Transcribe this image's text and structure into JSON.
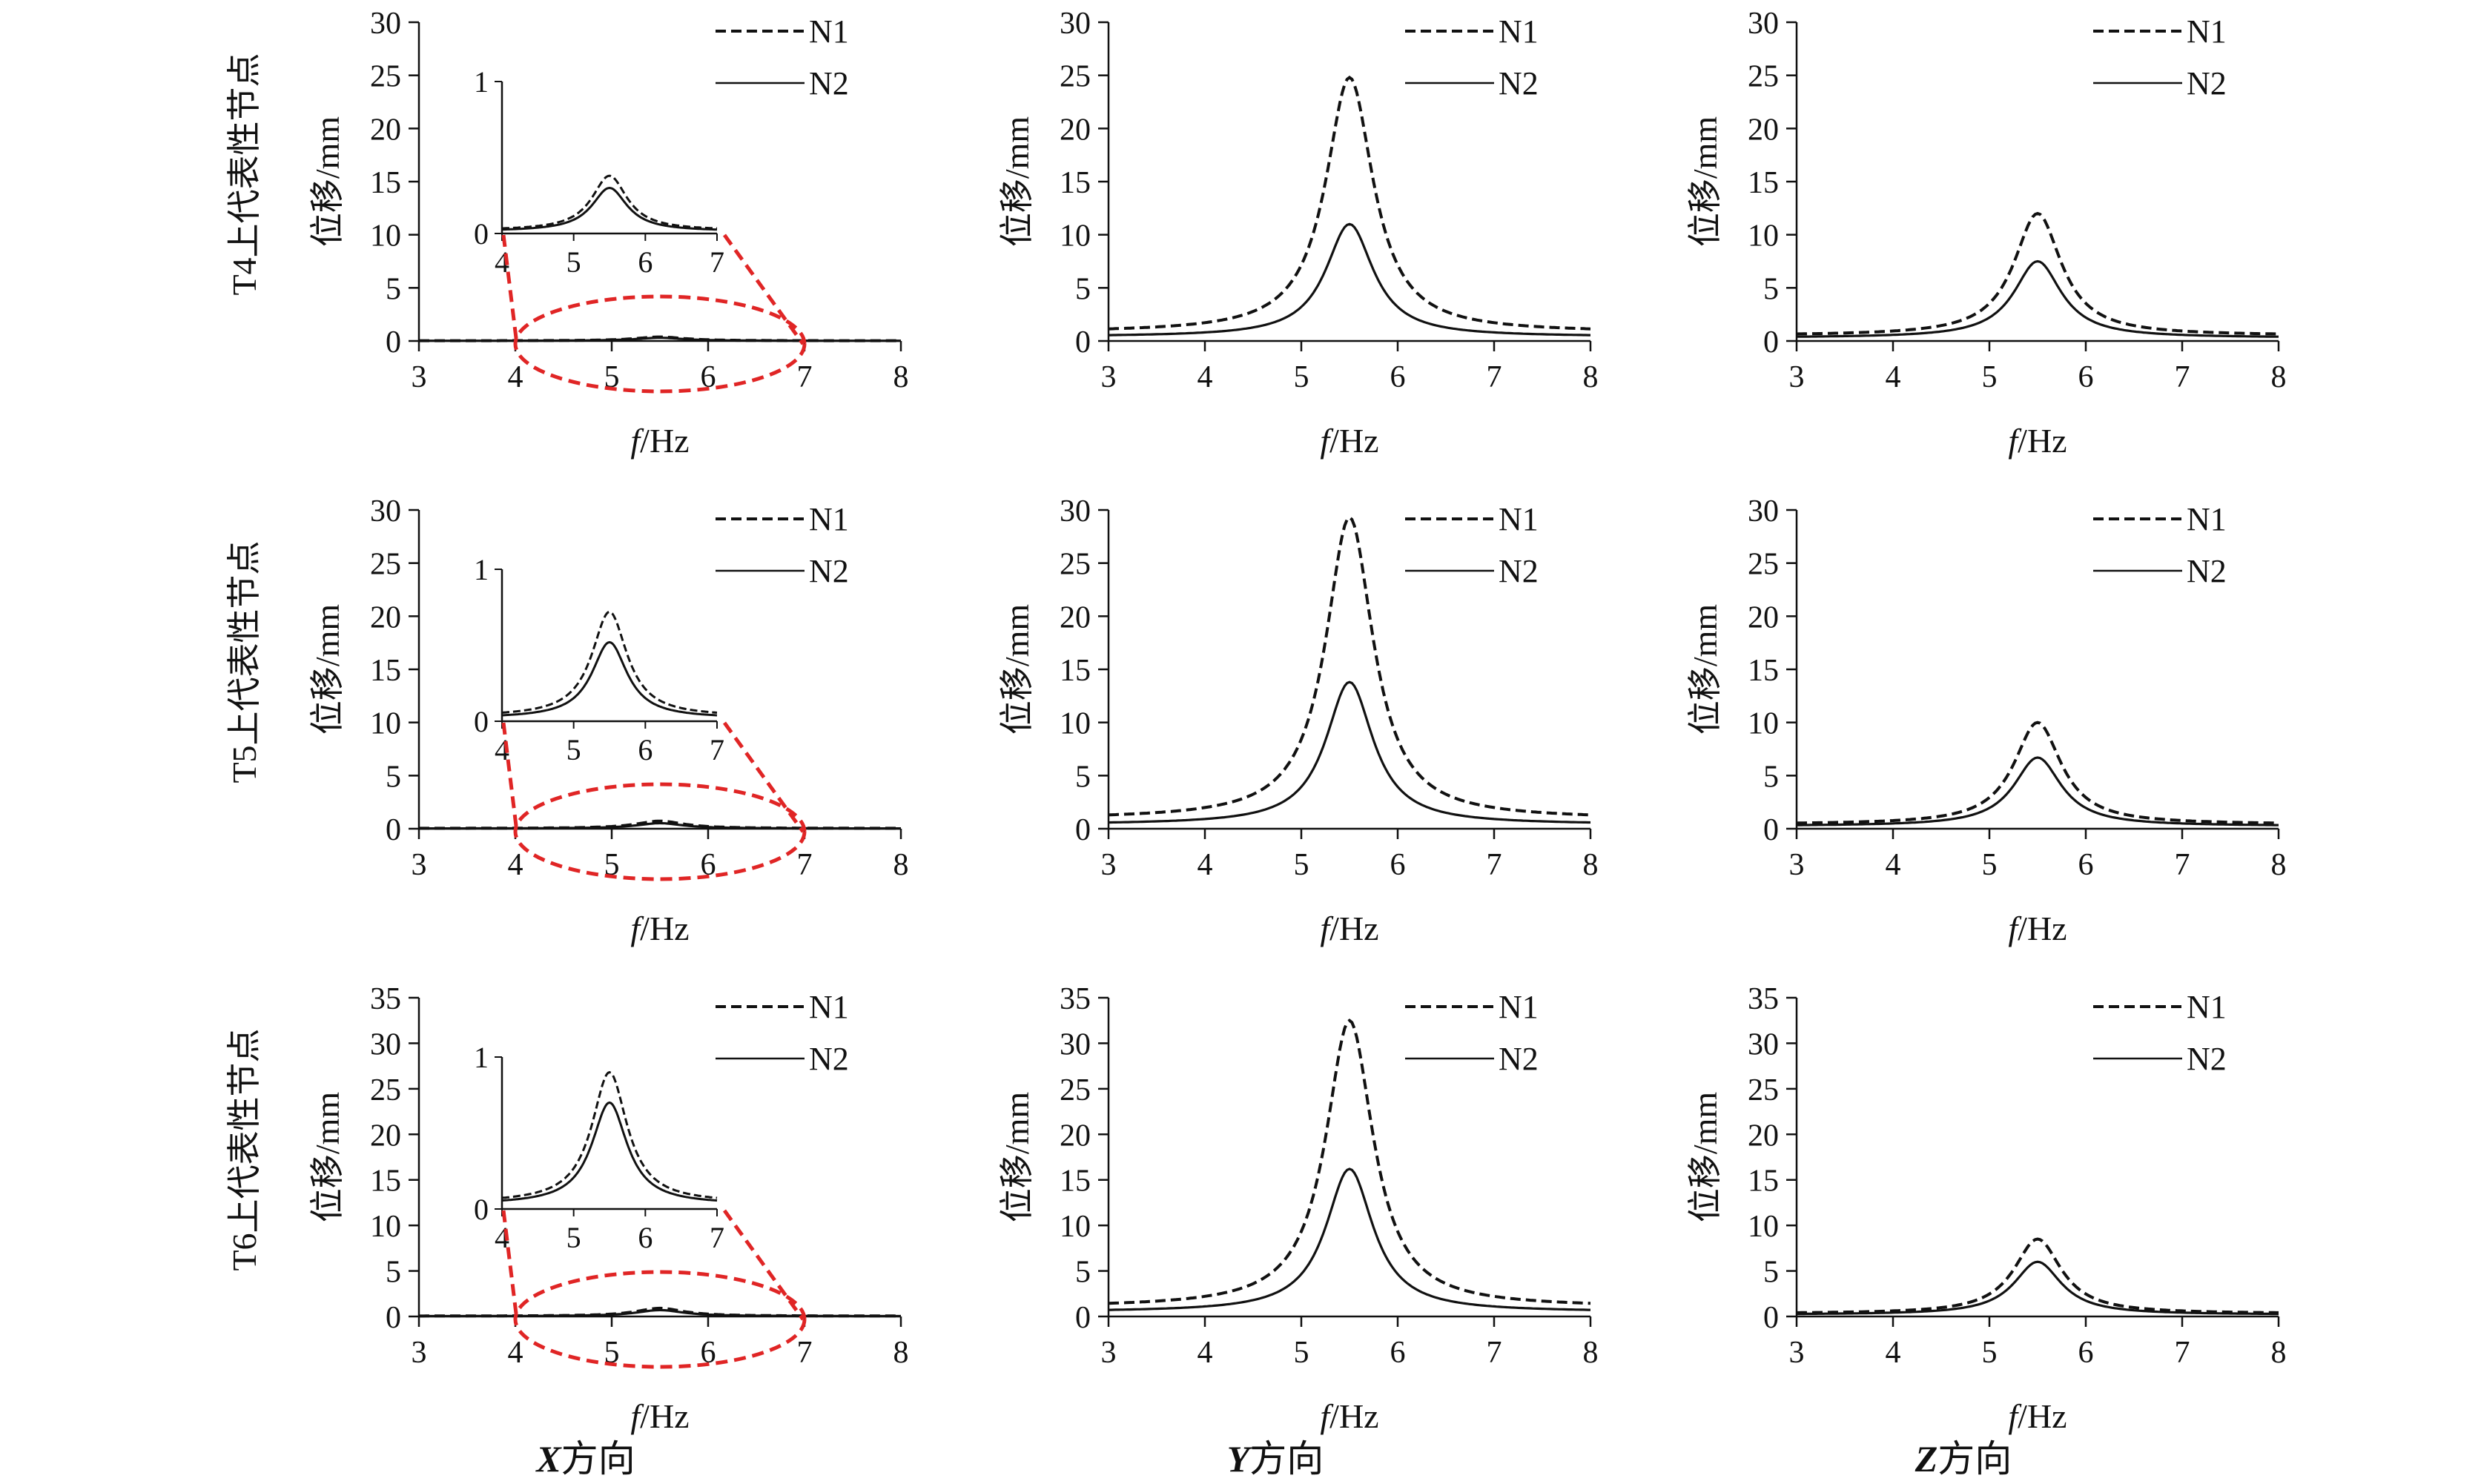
{
  "figure": {
    "row_labels": [
      "T4上代表性节点",
      "T5上代表性节点",
      "T6上代表性节点"
    ],
    "column_captions": [
      {
        "axis": "X",
        "suffix": "方向"
      },
      {
        "axis": "Y",
        "suffix": "方向"
      },
      {
        "axis": "Z",
        "suffix": "方向"
      }
    ],
    "colors": {
      "line": "#111111",
      "callout": "#e02525"
    }
  },
  "chart_data": [
    {
      "type": "line",
      "row": 0,
      "col": 0,
      "ylabel": "位移/mm",
      "xlabel_italic": "f",
      "xlabel_rest": "/Hz",
      "xlim": [
        3,
        8
      ],
      "xticks": [
        3,
        4,
        5,
        6,
        7,
        8
      ],
      "ylim": [
        0,
        30
      ],
      "yticks": [
        0,
        5,
        10,
        15,
        20,
        25,
        30
      ],
      "legend": [
        "N1",
        "N2"
      ],
      "series": [
        {
          "name": "N1",
          "style": "dashed",
          "peak": 0.38,
          "base": 0.02
        },
        {
          "name": "N2",
          "style": "solid",
          "peak": 0.3,
          "base": 0.015
        }
      ],
      "inset": {
        "xlim": [
          4,
          7
        ],
        "xticks": [
          4,
          5,
          6,
          7
        ],
        "ylim": [
          0,
          1
        ],
        "yticks": [
          0,
          1
        ],
        "zoom_x": [
          4,
          7
        ]
      }
    },
    {
      "type": "line",
      "row": 0,
      "col": 1,
      "ylabel": "位移/mm",
      "xlabel_italic": "f",
      "xlabel_rest": "/Hz",
      "xlim": [
        3,
        8
      ],
      "xticks": [
        3,
        4,
        5,
        6,
        7,
        8
      ],
      "ylim": [
        0,
        30
      ],
      "yticks": [
        0,
        5,
        10,
        15,
        20,
        25,
        30
      ],
      "legend": [
        "N1",
        "N2"
      ],
      "series": [
        {
          "name": "N1",
          "style": "dashed",
          "peak": 24.8,
          "base": 0.8
        },
        {
          "name": "N2",
          "style": "solid",
          "peak": 11,
          "base": 0.4
        }
      ]
    },
    {
      "type": "line",
      "row": 0,
      "col": 2,
      "ylabel": "位移/mm",
      "xlabel_italic": "f",
      "xlabel_rest": "/Hz",
      "xlim": [
        3,
        8
      ],
      "xticks": [
        3,
        4,
        5,
        6,
        7,
        8
      ],
      "ylim": [
        0,
        30
      ],
      "yticks": [
        0,
        5,
        10,
        15,
        20,
        25,
        30
      ],
      "legend": [
        "N1",
        "N2"
      ],
      "series": [
        {
          "name": "N1",
          "style": "dashed",
          "peak": 12,
          "base": 0.5
        },
        {
          "name": "N2",
          "style": "solid",
          "peak": 7.5,
          "base": 0.3
        }
      ]
    },
    {
      "type": "line",
      "row": 1,
      "col": 0,
      "ylabel": "位移/mm",
      "xlabel_italic": "f",
      "xlabel_rest": "/Hz",
      "xlim": [
        3,
        8
      ],
      "xticks": [
        3,
        4,
        5,
        6,
        7,
        8
      ],
      "ylim": [
        0,
        30
      ],
      "yticks": [
        0,
        5,
        10,
        15,
        20,
        25,
        30
      ],
      "legend": [
        "N1",
        "N2"
      ],
      "series": [
        {
          "name": "N1",
          "style": "dashed",
          "peak": 0.72,
          "base": 0.03
        },
        {
          "name": "N2",
          "style": "solid",
          "peak": 0.52,
          "base": 0.02
        }
      ],
      "inset": {
        "xlim": [
          4,
          7
        ],
        "xticks": [
          4,
          5,
          6,
          7
        ],
        "ylim": [
          0,
          1
        ],
        "yticks": [
          0,
          1
        ],
        "zoom_x": [
          4,
          7
        ]
      }
    },
    {
      "type": "line",
      "row": 1,
      "col": 1,
      "ylabel": "位移/mm",
      "xlabel_italic": "f",
      "xlabel_rest": "/Hz",
      "xlim": [
        3,
        8
      ],
      "xticks": [
        3,
        4,
        5,
        6,
        7,
        8
      ],
      "ylim": [
        0,
        30
      ],
      "yticks": [
        0,
        5,
        10,
        15,
        20,
        25,
        30
      ],
      "legend": [
        "N1",
        "N2"
      ],
      "series": [
        {
          "name": "N1",
          "style": "dashed",
          "peak": 29.3,
          "base": 0.9
        },
        {
          "name": "N2",
          "style": "solid",
          "peak": 13.8,
          "base": 0.4
        }
      ]
    },
    {
      "type": "line",
      "row": 1,
      "col": 2,
      "ylabel": "位移/mm",
      "xlabel_italic": "f",
      "xlabel_rest": "/Hz",
      "xlim": [
        3,
        8
      ],
      "xticks": [
        3,
        4,
        5,
        6,
        7,
        8
      ],
      "ylim": [
        0,
        30
      ],
      "yticks": [
        0,
        5,
        10,
        15,
        20,
        25,
        30
      ],
      "legend": [
        "N1",
        "N2"
      ],
      "series": [
        {
          "name": "N1",
          "style": "dashed",
          "peak": 10,
          "base": 0.4
        },
        {
          "name": "N2",
          "style": "solid",
          "peak": 6.7,
          "base": 0.25
        }
      ]
    },
    {
      "type": "line",
      "row": 2,
      "col": 0,
      "ylabel": "位移/mm",
      "xlabel_italic": "f",
      "xlabel_rest": "/Hz",
      "xlim": [
        3,
        8
      ],
      "xticks": [
        3,
        4,
        5,
        6,
        7,
        8
      ],
      "ylim": [
        0,
        35
      ],
      "yticks": [
        0,
        5,
        10,
        15,
        20,
        25,
        30,
        35
      ],
      "legend": [
        "N1",
        "N2"
      ],
      "series": [
        {
          "name": "N1",
          "style": "dashed",
          "peak": 0.9,
          "base": 0.04
        },
        {
          "name": "N2",
          "style": "solid",
          "peak": 0.7,
          "base": 0.03
        }
      ],
      "inset": {
        "xlim": [
          4,
          7
        ],
        "xticks": [
          4,
          5,
          6,
          7
        ],
        "ylim": [
          0,
          1
        ],
        "yticks": [
          0,
          1
        ],
        "zoom_x": [
          4,
          7
        ]
      }
    },
    {
      "type": "line",
      "row": 2,
      "col": 1,
      "ylabel": "位移/mm",
      "xlabel_italic": "f",
      "xlabel_rest": "/Hz",
      "xlim": [
        3,
        8
      ],
      "xticks": [
        3,
        4,
        5,
        6,
        7,
        8
      ],
      "ylim": [
        0,
        35
      ],
      "yticks": [
        0,
        5,
        10,
        15,
        20,
        25,
        30,
        35
      ],
      "legend": [
        "N1",
        "N2"
      ],
      "series": [
        {
          "name": "N1",
          "style": "dashed",
          "peak": 32.5,
          "base": 1.0
        },
        {
          "name": "N2",
          "style": "solid",
          "peak": 16.2,
          "base": 0.5
        }
      ]
    },
    {
      "type": "line",
      "row": 2,
      "col": 2,
      "ylabel": "位移/mm",
      "xlabel_italic": "f",
      "xlabel_rest": "/Hz",
      "xlim": [
        3,
        8
      ],
      "xticks": [
        3,
        4,
        5,
        6,
        7,
        8
      ],
      "ylim": [
        0,
        35
      ],
      "yticks": [
        0,
        5,
        10,
        15,
        20,
        25,
        30,
        35
      ],
      "legend": [
        "N1",
        "N2"
      ],
      "series": [
        {
          "name": "N1",
          "style": "dashed",
          "peak": 8.5,
          "base": 0.3
        },
        {
          "name": "N2",
          "style": "solid",
          "peak": 6,
          "base": 0.2
        }
      ]
    }
  ]
}
